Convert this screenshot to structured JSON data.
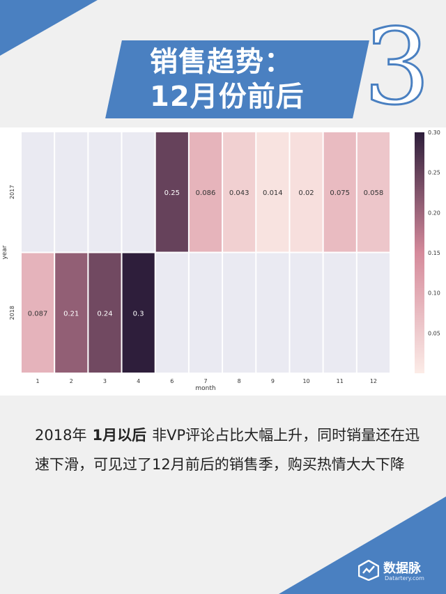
{
  "banner": {
    "title_line1": "销售趋势：",
    "title_line2": "12月份前后",
    "number": "3"
  },
  "chart_data": {
    "type": "heatmap",
    "xlabel": "month",
    "ylabel": "year",
    "x": [
      "1",
      "2",
      "3",
      "4",
      "6",
      "7",
      "8",
      "9",
      "10",
      "11",
      "12"
    ],
    "y": [
      "2017",
      "2018"
    ],
    "values": [
      [
        null,
        null,
        null,
        null,
        0.25,
        0.086,
        0.043,
        0.014,
        0.02,
        0.075,
        0.058
      ],
      [
        0.087,
        0.21,
        0.24,
        0.3,
        null,
        null,
        null,
        null,
        null,
        null,
        null
      ]
    ],
    "labels": [
      [
        "",
        "",
        "",
        "",
        "0.25",
        "0.086",
        "0.043",
        "0.014",
        "0.02",
        "0.075",
        "0.058"
      ],
      [
        "0.087",
        "0.21",
        "0.24",
        "0.3",
        "",
        "",
        "",
        "",
        "",
        "",
        ""
      ]
    ],
    "colorbar": {
      "min": 0,
      "max": 0.3,
      "ticks": [
        "0.05",
        "0.10",
        "0.15",
        "0.20",
        "0.25",
        "0.30"
      ]
    },
    "missing_color": "#eaeaf2",
    "colors": {
      "low": "#fcece7",
      "mid": "#d58a9b",
      "high": "#2e1e3b"
    }
  },
  "caption": {
    "part1": "2018年",
    "highlight": "1月以后",
    "part2": "非VP评论占比大幅上升，同时销量还在迅速下滑，可见过了12月前后的销售季，购买热情大大下降"
  },
  "logo": {
    "name": "数据脉",
    "url": "Datartery.com"
  }
}
